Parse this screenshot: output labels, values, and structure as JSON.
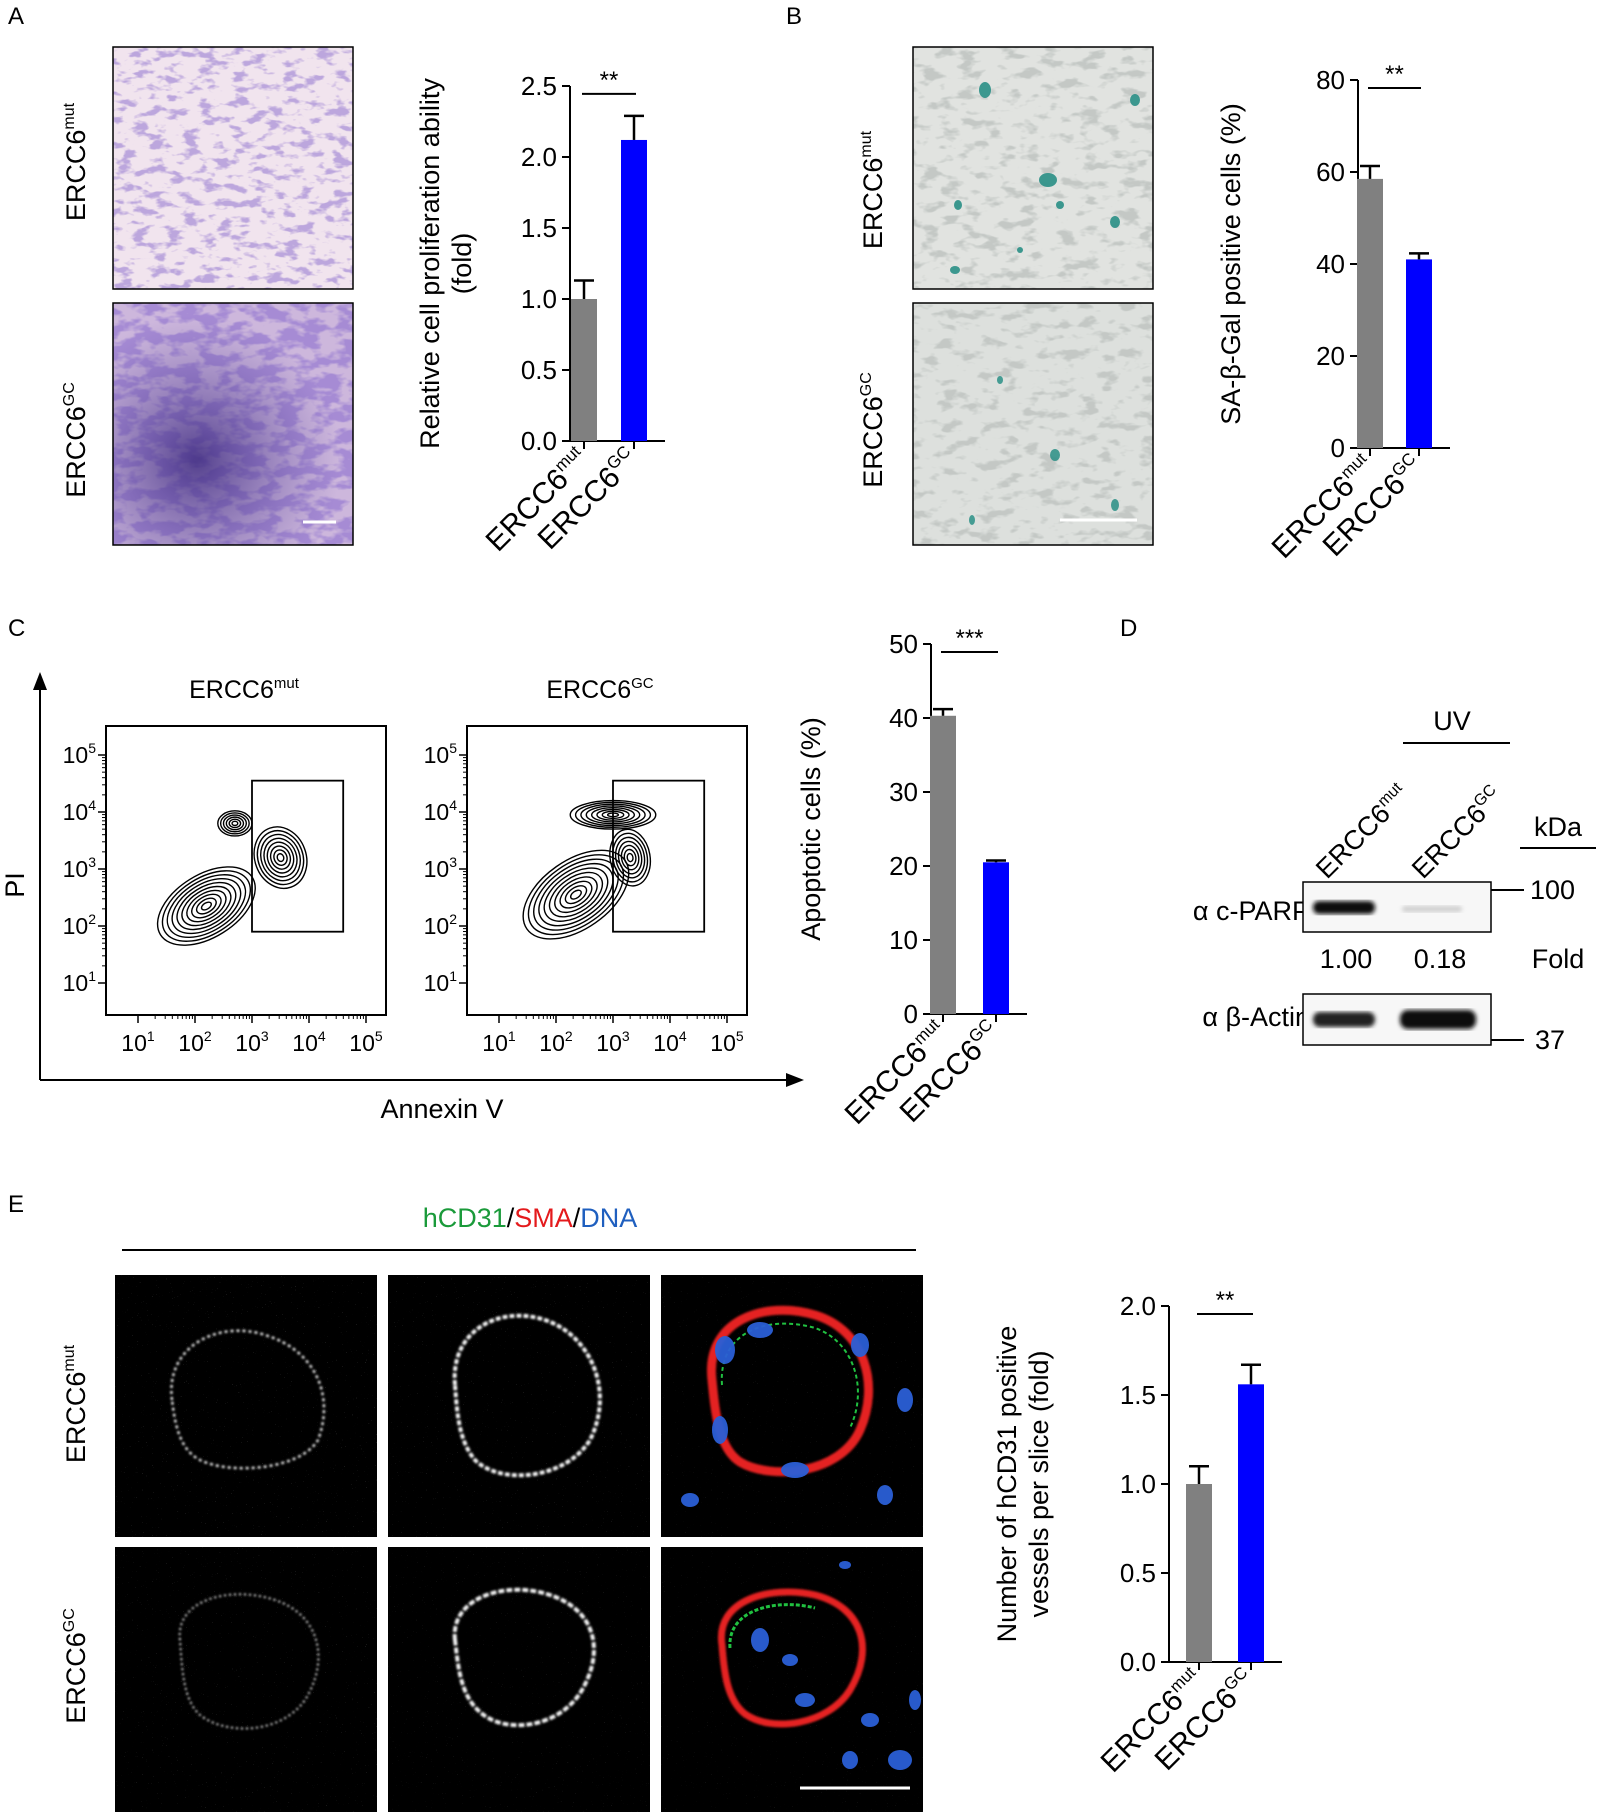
{
  "panels": {
    "A": {
      "letter": "A",
      "row_labels": {
        "mut_base": "ERCC6",
        "mut_sup": "mut",
        "gc_base": "ERCC6",
        "gc_sup": "GC"
      }
    },
    "B": {
      "letter": "B",
      "row_labels": {
        "mut_base": "ERCC6",
        "mut_sup": "mut",
        "gc_base": "ERCC6",
        "gc_sup": "GC"
      }
    },
    "C": {
      "letter": "C",
      "flow": {
        "title_mut_base": "ERCC6",
        "title_mut_sup": "mut",
        "title_gc_base": "ERCC6",
        "title_gc_sup": "GC",
        "y_axis_label": "PI",
        "x_axis_label": "Annexin V",
        "tick_base": "10",
        "tick_exponents": [
          "1",
          "2",
          "3",
          "4",
          "5"
        ]
      }
    },
    "D": {
      "letter": "D",
      "treatment": "UV",
      "lane_mut_base": "ERCC6",
      "lane_mut_sup": "mut",
      "lane_gc_base": "ERCC6",
      "lane_gc_sup": "GC",
      "kda_label": "kDa",
      "row1_label": "α c-PARP",
      "row2_label": "α β-Actin",
      "marker_100": "100",
      "marker_37": "37",
      "fold_mut": "1.00",
      "fold_gc": "0.18",
      "fold_label": "Fold"
    },
    "E": {
      "letter": "E",
      "stain_label_1": "hCD31",
      "stain_sep_1": "/",
      "stain_label_2": "SMA",
      "stain_sep_2": "/",
      "stain_label_3": "DNA",
      "row_labels": {
        "mut_base": "ERCC6",
        "mut_sup": "mut",
        "gc_base": "ERCC6",
        "gc_sup": "GC"
      }
    }
  },
  "colors": {
    "mut_bar": "#808080",
    "gc_bar": "#0000ff",
    "hcd31": "#1a9a3a",
    "sma": "#e41a1c",
    "dna": "#1f5fbf"
  },
  "chart_data": [
    {
      "id": "A",
      "type": "bar",
      "categories": [
        "ERCC6mut",
        "ERCC6GC"
      ],
      "cat_base": [
        "ERCC6",
        "ERCC6"
      ],
      "cat_sup": [
        "mut",
        "GC"
      ],
      "values": [
        1.0,
        2.12
      ],
      "errors": [
        0.13,
        0.17
      ],
      "ylim": [
        0,
        2.5
      ],
      "yticks": [
        "0.0",
        "0.5",
        "1.0",
        "1.5",
        "2.0",
        "2.5"
      ],
      "ylabel": [
        "Relative cell proliferation ability",
        "(fold)"
      ],
      "significance": "**"
    },
    {
      "id": "B",
      "type": "bar",
      "categories": [
        "ERCC6mut",
        "ERCC6GC"
      ],
      "cat_base": [
        "ERCC6",
        "ERCC6"
      ],
      "cat_sup": [
        "mut",
        "GC"
      ],
      "values": [
        58.5,
        41
      ],
      "errors": [
        2.8,
        1.3
      ],
      "ylim": [
        0,
        80
      ],
      "yticks": [
        "0",
        "20",
        "40",
        "60",
        "80"
      ],
      "ylabel": [
        "SA-β-Gal positive cells (%)"
      ],
      "significance": "**"
    },
    {
      "id": "C",
      "type": "bar",
      "categories": [
        "ERCC6mut",
        "ERCC6GC"
      ],
      "cat_base": [
        "ERCC6",
        "ERCC6"
      ],
      "cat_sup": [
        "mut",
        "GC"
      ],
      "values": [
        40.3,
        20.5
      ],
      "errors": [
        0.9,
        0.25
      ],
      "ylim": [
        0,
        50
      ],
      "yticks": [
        "0",
        "10",
        "20",
        "30",
        "40",
        "50"
      ],
      "ylabel": [
        "Apoptotic cells (%)"
      ],
      "significance": "***"
    },
    {
      "id": "E",
      "type": "bar",
      "categories": [
        "ERCC6mut",
        "ERCC6GC"
      ],
      "cat_base": [
        "ERCC6",
        "ERCC6"
      ],
      "cat_sup": [
        "mut",
        "GC"
      ],
      "values": [
        1.0,
        1.56
      ],
      "errors": [
        0.1,
        0.11
      ],
      "ylim": [
        0,
        2.0
      ],
      "yticks": [
        "0.0",
        "0.5",
        "1.0",
        "1.5",
        "2.0"
      ],
      "ylabel": [
        "Number of hCD31 positive",
        "vessels per slice (fold)"
      ],
      "significance": "**"
    }
  ]
}
